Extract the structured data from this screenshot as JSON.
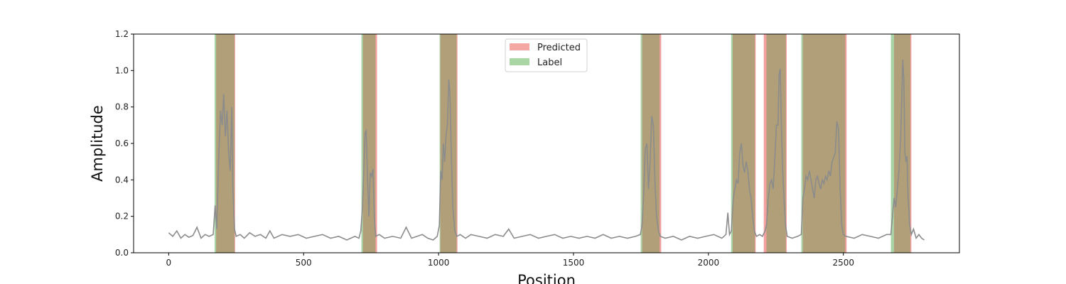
{
  "chart_data": {
    "type": "line",
    "title": "",
    "xlabel": "Position",
    "ylabel": "Amplitude",
    "xlim": [
      -130,
      2930
    ],
    "ylim": [
      0,
      1.2
    ],
    "x_ticks": [
      0,
      500,
      1000,
      1500,
      2000,
      2500
    ],
    "y_ticks": [
      0.0,
      0.2,
      0.4,
      0.6,
      0.8,
      1.0,
      1.2
    ],
    "y_tick_labels": [
      "0.0",
      "0.2",
      "0.4",
      "0.6",
      "0.8",
      "1.0",
      "1.2"
    ],
    "legend": {
      "placement": "top-center",
      "entries": [
        {
          "label": "Predicted",
          "color": "#f4a8a3"
        },
        {
          "label": "Label",
          "color": "#a9d6a4"
        }
      ]
    },
    "colors": {
      "predicted": "#f08080",
      "label": "#8bc68b",
      "overlap": "#b09f78",
      "signal": "#8c8c8c"
    },
    "predicted_regions": [
      [
        176,
        246
      ],
      [
        720,
        772
      ],
      [
        1007,
        1070
      ],
      [
        1755,
        1825
      ],
      [
        2090,
        2175
      ],
      [
        2205,
        2290
      ],
      [
        2350,
        2512
      ],
      [
        2688,
        2752
      ]
    ],
    "label_regions": [
      [
        170,
        244
      ],
      [
        714,
        766
      ],
      [
        1004,
        1067
      ],
      [
        1749,
        1819
      ],
      [
        2084,
        2172
      ],
      [
        2215,
        2287
      ],
      [
        2344,
        2507
      ],
      [
        2676,
        2748
      ]
    ],
    "series": [
      {
        "values": [
          [
            0,
            0.11
          ],
          [
            15,
            0.09
          ],
          [
            30,
            0.12
          ],
          [
            45,
            0.08
          ],
          [
            60,
            0.1
          ],
          [
            75,
            0.085
          ],
          [
            90,
            0.095
          ],
          [
            105,
            0.14
          ],
          [
            120,
            0.08
          ],
          [
            135,
            0.1
          ],
          [
            150,
            0.09
          ],
          [
            165,
            0.1
          ],
          [
            172,
            0.26
          ],
          [
            178,
            0.13
          ],
          [
            185,
            0.5
          ],
          [
            192,
            0.78
          ],
          [
            198,
            0.7
          ],
          [
            204,
            0.87
          ],
          [
            210,
            0.64
          ],
          [
            216,
            0.78
          ],
          [
            222,
            0.55
          ],
          [
            228,
            0.45
          ],
          [
            234,
            0.8
          ],
          [
            238,
            0.35
          ],
          [
            244,
            0.13
          ],
          [
            250,
            0.09
          ],
          [
            265,
            0.1
          ],
          [
            280,
            0.08
          ],
          [
            300,
            0.11
          ],
          [
            320,
            0.09
          ],
          [
            340,
            0.1
          ],
          [
            360,
            0.08
          ],
          [
            375,
            0.12
          ],
          [
            390,
            0.08
          ],
          [
            420,
            0.1
          ],
          [
            450,
            0.09
          ],
          [
            480,
            0.1
          ],
          [
            510,
            0.08
          ],
          [
            540,
            0.09
          ],
          [
            570,
            0.1
          ],
          [
            600,
            0.08
          ],
          [
            630,
            0.09
          ],
          [
            660,
            0.07
          ],
          [
            690,
            0.09
          ],
          [
            705,
            0.08
          ],
          [
            712,
            0.12
          ],
          [
            718,
            0.25
          ],
          [
            724,
            0.5
          ],
          [
            728,
            0.66
          ],
          [
            732,
            0.67
          ],
          [
            737,
            0.4
          ],
          [
            742,
            0.2
          ],
          [
            747,
            0.44
          ],
          [
            752,
            0.42
          ],
          [
            757,
            0.46
          ],
          [
            762,
            0.2
          ],
          [
            767,
            0.09
          ],
          [
            780,
            0.1
          ],
          [
            800,
            0.08
          ],
          [
            830,
            0.09
          ],
          [
            860,
            0.08
          ],
          [
            880,
            0.14
          ],
          [
            900,
            0.08
          ],
          [
            920,
            0.09
          ],
          [
            940,
            0.1
          ],
          [
            960,
            0.08
          ],
          [
            980,
            0.07
          ],
          [
            995,
            0.09
          ],
          [
            1003,
            0.15
          ],
          [
            1008,
            0.45
          ],
          [
            1013,
            0.4
          ],
          [
            1018,
            0.6
          ],
          [
            1023,
            0.5
          ],
          [
            1028,
            0.65
          ],
          [
            1033,
            0.7
          ],
          [
            1038,
            0.95
          ],
          [
            1042,
            0.88
          ],
          [
            1047,
            0.55
          ],
          [
            1053,
            0.25
          ],
          [
            1060,
            0.12
          ],
          [
            1068,
            0.09
          ],
          [
            1080,
            0.1
          ],
          [
            1100,
            0.08
          ],
          [
            1120,
            0.1
          ],
          [
            1150,
            0.09
          ],
          [
            1180,
            0.08
          ],
          [
            1210,
            0.1
          ],
          [
            1240,
            0.09
          ],
          [
            1260,
            0.13
          ],
          [
            1280,
            0.08
          ],
          [
            1310,
            0.09
          ],
          [
            1340,
            0.1
          ],
          [
            1370,
            0.08
          ],
          [
            1400,
            0.09
          ],
          [
            1430,
            0.1
          ],
          [
            1460,
            0.08
          ],
          [
            1490,
            0.09
          ],
          [
            1520,
            0.08
          ],
          [
            1550,
            0.09
          ],
          [
            1580,
            0.08
          ],
          [
            1610,
            0.1
          ],
          [
            1640,
            0.08
          ],
          [
            1670,
            0.09
          ],
          [
            1700,
            0.08
          ],
          [
            1730,
            0.09
          ],
          [
            1748,
            0.1
          ],
          [
            1754,
            0.15
          ],
          [
            1760,
            0.32
          ],
          [
            1766,
            0.57
          ],
          [
            1772,
            0.6
          ],
          [
            1778,
            0.35
          ],
          [
            1784,
            0.5
          ],
          [
            1790,
            0.75
          ],
          [
            1796,
            0.7
          ],
          [
            1802,
            0.38
          ],
          [
            1808,
            0.2
          ],
          [
            1815,
            0.12
          ],
          [
            1822,
            0.09
          ],
          [
            1840,
            0.08
          ],
          [
            1870,
            0.09
          ],
          [
            1900,
            0.07
          ],
          [
            1930,
            0.09
          ],
          [
            1960,
            0.08
          ],
          [
            1990,
            0.09
          ],
          [
            2020,
            0.1
          ],
          [
            2050,
            0.08
          ],
          [
            2065,
            0.1
          ],
          [
            2072,
            0.22
          ],
          [
            2078,
            0.1
          ],
          [
            2085,
            0.12
          ],
          [
            2092,
            0.3
          ],
          [
            2098,
            0.35
          ],
          [
            2104,
            0.4
          ],
          [
            2110,
            0.38
          ],
          [
            2116,
            0.55
          ],
          [
            2122,
            0.6
          ],
          [
            2128,
            0.48
          ],
          [
            2134,
            0.44
          ],
          [
            2140,
            0.5
          ],
          [
            2146,
            0.45
          ],
          [
            2152,
            0.35
          ],
          [
            2158,
            0.3
          ],
          [
            2164,
            0.2
          ],
          [
            2170,
            0.12
          ],
          [
            2178,
            0.09
          ],
          [
            2190,
            0.1
          ],
          [
            2200,
            0.09
          ],
          [
            2210,
            0.12
          ],
          [
            2215,
            0.15
          ],
          [
            2222,
            0.3
          ],
          [
            2228,
            0.38
          ],
          [
            2234,
            0.4
          ],
          [
            2240,
            0.35
          ],
          [
            2246,
            0.52
          ],
          [
            2252,
            0.7
          ],
          [
            2258,
            0.7
          ],
          [
            2262,
            0.98
          ],
          [
            2266,
            1.01
          ],
          [
            2270,
            0.72
          ],
          [
            2275,
            0.45
          ],
          [
            2280,
            0.3
          ],
          [
            2286,
            0.15
          ],
          [
            2292,
            0.09
          ],
          [
            2310,
            0.08
          ],
          [
            2330,
            0.09
          ],
          [
            2344,
            0.1
          ],
          [
            2350,
            0.3
          ],
          [
            2356,
            0.35
          ],
          [
            2362,
            0.42
          ],
          [
            2368,
            0.4
          ],
          [
            2374,
            0.45
          ],
          [
            2380,
            0.4
          ],
          [
            2386,
            0.35
          ],
          [
            2392,
            0.3
          ],
          [
            2398,
            0.4
          ],
          [
            2404,
            0.42
          ],
          [
            2410,
            0.38
          ],
          [
            2416,
            0.35
          ],
          [
            2422,
            0.4
          ],
          [
            2428,
            0.38
          ],
          [
            2434,
            0.42
          ],
          [
            2440,
            0.4
          ],
          [
            2446,
            0.45
          ],
          [
            2452,
            0.42
          ],
          [
            2458,
            0.5
          ],
          [
            2464,
            0.52
          ],
          [
            2470,
            0.55
          ],
          [
            2476,
            0.72
          ],
          [
            2482,
            0.68
          ],
          [
            2488,
            0.35
          ],
          [
            2494,
            0.15
          ],
          [
            2500,
            0.1
          ],
          [
            2510,
            0.09
          ],
          [
            2540,
            0.08
          ],
          [
            2570,
            0.1
          ],
          [
            2600,
            0.09
          ],
          [
            2630,
            0.08
          ],
          [
            2660,
            0.1
          ],
          [
            2676,
            0.1
          ],
          [
            2682,
            0.2
          ],
          [
            2688,
            0.3
          ],
          [
            2694,
            0.25
          ],
          [
            2700,
            0.35
          ],
          [
            2706,
            0.45
          ],
          [
            2712,
            0.62
          ],
          [
            2716,
            0.82
          ],
          [
            2720,
            1.06
          ],
          [
            2724,
            0.95
          ],
          [
            2728,
            0.55
          ],
          [
            2732,
            0.5
          ],
          [
            2736,
            0.53
          ],
          [
            2740,
            0.3
          ],
          [
            2746,
            0.15
          ],
          [
            2752,
            0.1
          ],
          [
            2760,
            0.13
          ],
          [
            2770,
            0.08
          ],
          [
            2780,
            0.1
          ],
          [
            2790,
            0.08
          ],
          [
            2800,
            0.07
          ]
        ]
      }
    ]
  }
}
